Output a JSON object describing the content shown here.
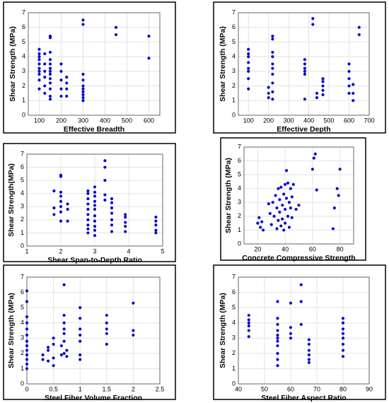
{
  "chart_data": [
    {
      "type": "scatter",
      "xlabel": "Effective Breadth",
      "ylabel": "Shear Strength (MPa)",
      "color": "#0a0ad0",
      "grid": true,
      "xlim": [
        50,
        650
      ],
      "xticks": [
        100,
        200,
        300,
        400,
        500,
        600
      ],
      "ylim": [
        0,
        7
      ],
      "yticks": [
        0,
        1,
        2,
        3,
        4,
        5,
        6,
        7
      ],
      "x": [
        100,
        100,
        100,
        100,
        100,
        100,
        100,
        100,
        100,
        100,
        125,
        125,
        125,
        125,
        125,
        125,
        150,
        150,
        150,
        150,
        150,
        150,
        150,
        150,
        150,
        150,
        150,
        150,
        150,
        200,
        200,
        200,
        200,
        200,
        225,
        225,
        225,
        225,
        300,
        300,
        300,
        300,
        300,
        300,
        300,
        300,
        300,
        300,
        450,
        450,
        600,
        600
      ],
      "values": [
        1.8,
        2.4,
        2.8,
        3.0,
        3.2,
        3.5,
        3.8,
        4.0,
        4.2,
        4.5,
        1.5,
        2.0,
        2.6,
        3.0,
        3.5,
        4.2,
        1.1,
        1.3,
        1.8,
        2.2,
        2.5,
        2.8,
        3.0,
        3.2,
        3.5,
        3.8,
        4.3,
        5.3,
        5.4,
        1.3,
        1.8,
        2.4,
        3.0,
        3.5,
        1.3,
        1.8,
        2.2,
        2.6,
        1.0,
        1.2,
        1.4,
        1.6,
        1.8,
        2.0,
        2.4,
        2.8,
        6.2,
        6.5,
        5.5,
        6.0,
        3.9,
        5.4
      ]
    },
    {
      "type": "scatter",
      "xlabel": "Effective Depth",
      "ylabel": "Shear Strength (MPa)",
      "color": "#0a0ad0",
      "grid": true,
      "xlim": [
        50,
        700
      ],
      "xticks": [
        100,
        200,
        300,
        400,
        500,
        600,
        700
      ],
      "ylim": [
        0,
        7
      ],
      "yticks": [
        0,
        1,
        2,
        3,
        4,
        5,
        6,
        7
      ],
      "x": [
        100,
        100,
        100,
        100,
        100,
        100,
        100,
        100,
        200,
        200,
        200,
        220,
        220,
        220,
        220,
        220,
        220,
        220,
        220,
        220,
        220,
        380,
        380,
        380,
        380,
        380,
        380,
        420,
        420,
        440,
        440,
        470,
        470,
        470,
        470,
        470,
        600,
        600,
        600,
        600,
        600,
        620,
        620,
        620,
        650,
        650
      ],
      "values": [
        1.8,
        2.5,
        3.0,
        3.2,
        3.6,
        4.0,
        4.2,
        4.5,
        1.2,
        1.5,
        1.9,
        1.1,
        1.6,
        2.2,
        2.8,
        3.2,
        3.5,
        4.0,
        4.3,
        5.2,
        5.4,
        1.1,
        2.8,
        3.0,
        3.2,
        3.5,
        3.8,
        6.2,
        6.6,
        1.2,
        1.5,
        1.4,
        1.7,
        2.0,
        2.3,
        2.5,
        1.5,
        2.0,
        2.5,
        3.0,
        3.5,
        1.0,
        1.5,
        2.1,
        5.5,
        6.0
      ]
    },
    {
      "type": "scatter",
      "xlabel": "Shear Span-to-Depth Ratio",
      "ylabel": "Shear Strength(MPa)",
      "color": "#0a0ad0",
      "grid": true,
      "xlim": [
        1,
        5
      ],
      "xticks": [
        1,
        2,
        3,
        4,
        5
      ],
      "ylim": [
        0,
        7
      ],
      "yticks": [
        0,
        1,
        2,
        3,
        4,
        5,
        6,
        7
      ],
      "x": [
        1.8,
        1.8,
        1.8,
        2.0,
        2.0,
        2.0,
        2.0,
        2.0,
        2.0,
        2.0,
        2.0,
        2.2,
        2.2,
        2.2,
        2.8,
        2.8,
        2.8,
        2.8,
        2.8,
        2.8,
        2.8,
        2.8,
        2.8,
        2.8,
        3.0,
        3.0,
        3.0,
        3.0,
        3.0,
        3.0,
        3.0,
        3.0,
        3.0,
        3.0,
        3.0,
        3.3,
        3.3,
        3.3,
        3.3,
        3.3,
        3.5,
        3.5,
        3.5,
        3.5,
        3.5,
        3.5,
        3.5,
        3.9,
        3.9,
        3.9,
        3.9,
        3.9,
        4.8,
        4.8,
        4.8,
        4.8,
        4.8
      ],
      "values": [
        2.4,
        2.9,
        4.2,
        1.9,
        2.6,
        3.0,
        3.4,
        3.8,
        4.1,
        5.3,
        5.4,
        1.9,
        2.8,
        3.2,
        1.0,
        1.3,
        1.6,
        2.0,
        2.4,
        2.8,
        3.2,
        3.6,
        4.0,
        4.2,
        0.8,
        1.2,
        1.5,
        1.9,
        2.3,
        2.8,
        3.1,
        3.4,
        3.8,
        4.1,
        4.5,
        3.5,
        3.9,
        5.0,
        6.0,
        6.5,
        1.1,
        1.6,
        2.0,
        2.5,
        2.9,
        3.3,
        3.6,
        1.1,
        1.5,
        1.8,
        2.2,
        2.4,
        1.0,
        1.2,
        1.6,
        1.9,
        2.2
      ]
    },
    {
      "type": "scatter",
      "xlabel": "Concrete Compressive Strength",
      "ylabel": "Shear Strength (MPa)",
      "color": "#0a0ad0",
      "grid": true,
      "xlim": [
        10,
        90
      ],
      "xticks": [
        20,
        40,
        60,
        80
      ],
      "ylim": [
        0,
        7
      ],
      "yticks": [
        0,
        1,
        2,
        3,
        4,
        5,
        6,
        7
      ],
      "x": [
        20,
        21,
        22,
        23,
        24,
        28,
        29,
        30,
        31,
        32,
        33,
        34,
        34,
        35,
        35,
        36,
        36,
        37,
        37,
        38,
        38,
        39,
        39,
        40,
        40,
        40,
        41,
        41,
        42,
        42,
        43,
        43,
        44,
        44,
        45,
        45,
        46,
        48,
        50,
        60,
        61,
        62,
        63,
        75,
        76,
        78,
        79,
        80
      ],
      "values": [
        1.5,
        1.9,
        1.2,
        1.6,
        1.0,
        2.9,
        2.2,
        1.4,
        3.0,
        2.0,
        3.5,
        1.1,
        2.6,
        4.0,
        1.7,
        3.2,
        2.3,
        1.3,
        4.1,
        2.8,
        1.8,
        3.6,
        1.0,
        4.3,
        2.5,
        1.5,
        3.3,
        5.3,
        2.0,
        4.4,
        1.2,
        3.0,
        2.6,
        4.0,
        1.9,
        3.4,
        4.3,
        2.5,
        2.8,
        5.4,
        6.2,
        6.5,
        3.9,
        1.1,
        2.6,
        4.0,
        3.5,
        5.4
      ]
    },
    {
      "type": "scatter",
      "xlabel": "Steel Fiber Volume Fraction",
      "ylabel": "Shear Strength (MPa)",
      "color": "#0a0ad0",
      "grid": true,
      "xlim": [
        0,
        2.5
      ],
      "xticks": [
        0,
        0.5,
        1,
        1.5,
        2,
        2.5
      ],
      "ylim": [
        0,
        7
      ],
      "yticks": [
        0,
        1,
        2,
        3,
        4,
        5,
        6,
        7
      ],
      "x": [
        0,
        0,
        0,
        0,
        0,
        0,
        0,
        0,
        0,
        0,
        0,
        0,
        0,
        0.3,
        0.3,
        0.4,
        0.4,
        0.4,
        0.5,
        0.5,
        0.5,
        0.5,
        0.65,
        0.65,
        0.7,
        0.7,
        0.7,
        0.7,
        0.7,
        0.7,
        0.7,
        0.75,
        0.75,
        1,
        1,
        1,
        1,
        1,
        1,
        1,
        1.5,
        1.5,
        1.5,
        1.5,
        1.5,
        2,
        2,
        2
      ],
      "values": [
        1.0,
        1.3,
        1.6,
        1.9,
        2.2,
        2.5,
        2.8,
        3.2,
        3.6,
        4.0,
        4.4,
        5.4,
        6.1,
        1.6,
        1.9,
        1.5,
        2.2,
        2.4,
        1.2,
        1.7,
        2.6,
        3.0,
        1.9,
        2.5,
        2.0,
        2.8,
        3.3,
        3.6,
        4.0,
        4.5,
        6.5,
        1.8,
        2.2,
        1.6,
        1.9,
        2.8,
        3.2,
        3.6,
        4.3,
        5.0,
        2.6,
        3.3,
        3.6,
        4.0,
        4.5,
        3.2,
        3.5,
        5.3
      ]
    },
    {
      "type": "scatter",
      "xlabel": "Steel Fiber Aspect Ratio",
      "ylabel": "Shear Strength (MPa)",
      "color": "#0a0ad0",
      "grid": true,
      "xlim": [
        40,
        90
      ],
      "xticks": [
        40,
        50,
        60,
        70,
        80,
        90
      ],
      "ylim": [
        0,
        7
      ],
      "yticks": [
        0,
        1,
        2,
        3,
        4,
        5,
        6,
        7
      ],
      "x": [
        44,
        44,
        44,
        44,
        44,
        44,
        55,
        55,
        55,
        55,
        55,
        55,
        55,
        55,
        55,
        55,
        55,
        60,
        60,
        60,
        60,
        64,
        64,
        64,
        67,
        67,
        67,
        67,
        67,
        67,
        80,
        80,
        80,
        80,
        80,
        80,
        80,
        80
      ],
      "values": [
        3.1,
        3.5,
        3.8,
        4.0,
        4.2,
        4.5,
        1.2,
        1.6,
        2.0,
        2.5,
        2.8,
        3.0,
        3.2,
        3.5,
        3.9,
        4.3,
        5.4,
        3.0,
        3.3,
        3.7,
        5.3,
        3.9,
        5.4,
        6.5,
        1.4,
        1.6,
        1.9,
        2.2,
        2.6,
        2.9,
        1.8,
        2.2,
        2.6,
        3.0,
        3.3,
        3.6,
        4.0,
        4.3
      ]
    }
  ]
}
